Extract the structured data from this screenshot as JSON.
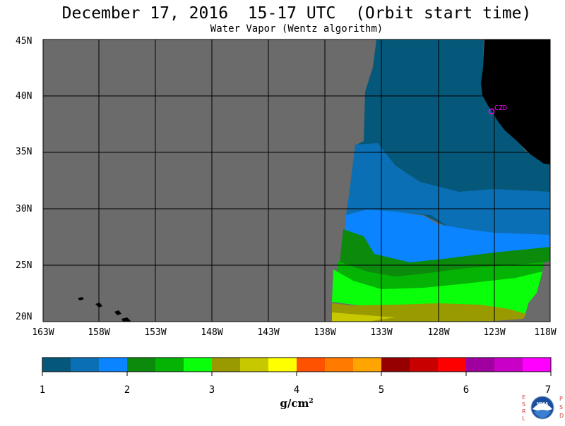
{
  "title": "December 17, 2016  15-17 UTC  (Orbit start time)",
  "subtitle": "Water Vapor (Wentz algorithm)",
  "lat_labels": [
    "45N",
    "40N",
    "35N",
    "30N",
    "25N",
    "20N"
  ],
  "lon_labels": [
    "163W",
    "158W",
    "153W",
    "148W",
    "143W",
    "138W",
    "133W",
    "128W",
    "123W",
    "118W"
  ],
  "station_label": "CZD",
  "colorbar": {
    "tick_labels": [
      "1",
      "2",
      "3",
      "4",
      "5",
      "6",
      "7"
    ],
    "units": "g/cm",
    "units_exp": "2",
    "colors": [
      "#05587a",
      "#0a6fb5",
      "#0a84ff",
      "#0b8a0b",
      "#04b304",
      "#0aff0a",
      "#999900",
      "#c8c800",
      "#ffff00",
      "#ff5200",
      "#ff7b00",
      "#ffa400",
      "#960000",
      "#c80000",
      "#ff0000",
      "#a000a0",
      "#c800c8",
      "#ff00ff"
    ]
  },
  "colors": {
    "no_data": "#6b6b6b",
    "land": "#000000",
    "grid": "#000000",
    "station": "#ff00ff"
  },
  "logo": {
    "left_text": "ESRL",
    "right_text": "PSD",
    "center_text": "NOAA"
  }
}
